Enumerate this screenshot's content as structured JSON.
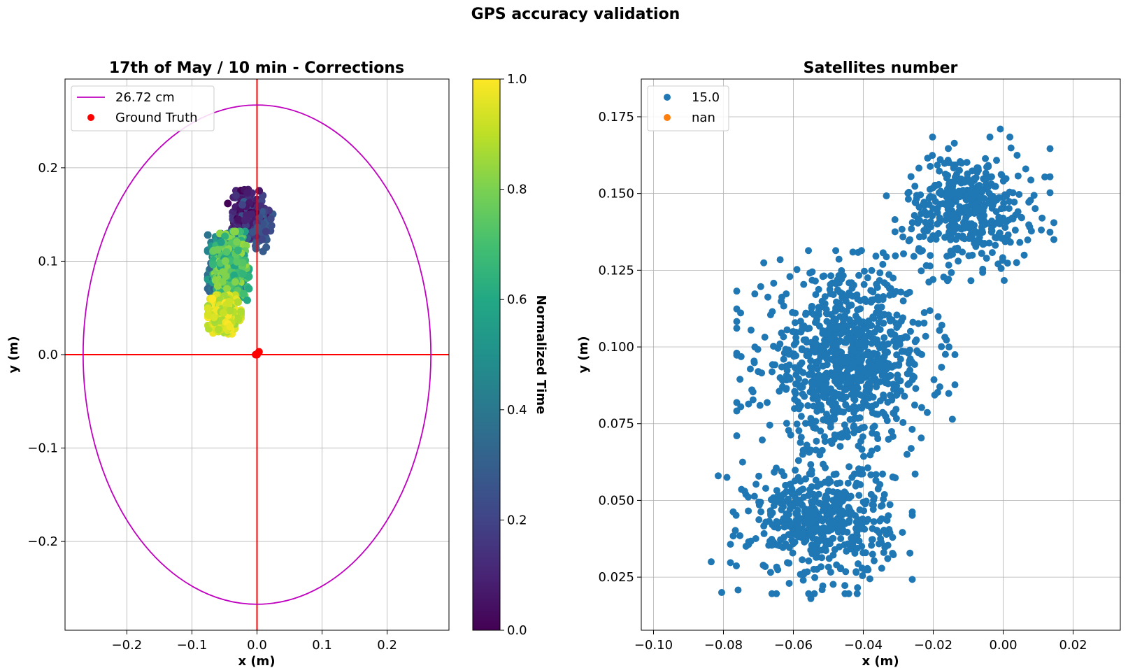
{
  "figure": {
    "suptitle": "GPS accuracy validation"
  },
  "chart_data": [
    {
      "type": "scatter",
      "title": "17th of May / 10 min - Corrections",
      "xlabel": "x (m)",
      "ylabel": "y (m)",
      "xlim": [
        -0.295,
        0.295
      ],
      "ylim": [
        -0.295,
        0.295
      ],
      "xticks": [
        "−0.2",
        "−0.1",
        "0.0",
        "0.1",
        "0.2"
      ],
      "xtick_values": [
        -0.2,
        -0.1,
        0.0,
        0.1,
        0.2
      ],
      "yticks": [
        "−0.2",
        "−0.1",
        "0.0",
        "0.1",
        "0.2"
      ],
      "ytick_values": [
        -0.2,
        -0.1,
        0.0,
        0.1,
        0.2
      ],
      "grid": true,
      "legend_position": "upper-left",
      "circle": {
        "name": "26.72 cm",
        "radius": 0.2672,
        "color": "#bf00bf"
      },
      "ground_truth": {
        "name": "Ground Truth",
        "color": "#ff0000",
        "points": [
          [
            0.0,
            0.0
          ],
          [
            0.003,
            0.003
          ],
          [
            -0.002,
            0.0
          ]
        ]
      },
      "crosshair_color": "#ff0000",
      "colormap": "viridis",
      "colorbar": {
        "label": "Normalized Time",
        "range": [
          0.0,
          1.0
        ],
        "ticks": [
          "0.0",
          "0.2",
          "0.4",
          "0.6",
          "0.8",
          "1.0"
        ],
        "tick_values": [
          0.0,
          0.2,
          0.4,
          0.6,
          0.8,
          1.0
        ]
      },
      "point_clusters": [
        {
          "time_range": [
            0.0,
            0.3
          ],
          "center": [
            -0.01,
            0.145
          ],
          "spread": [
            0.012,
            0.012
          ],
          "count": 380
        },
        {
          "time_range": [
            0.3,
            0.55
          ],
          "center": [
            -0.048,
            0.095
          ],
          "spread": [
            0.012,
            0.015
          ],
          "count": 380
        },
        {
          "time_range": [
            0.55,
            0.85
          ],
          "center": [
            -0.04,
            0.095
          ],
          "spread": [
            0.012,
            0.016
          ],
          "count": 420
        },
        {
          "time_range": [
            0.85,
            1.0
          ],
          "center": [
            -0.05,
            0.043
          ],
          "spread": [
            0.011,
            0.009
          ],
          "count": 360
        }
      ]
    },
    {
      "type": "scatter",
      "title": "Satellites number",
      "xlabel": "x (m)",
      "ylabel": "y (m)",
      "xlim": [
        -0.1035,
        0.0335
      ],
      "ylim": [
        0.0077,
        0.1873
      ],
      "xticks": [
        "−0.10",
        "−0.08",
        "−0.06",
        "−0.04",
        "−0.02",
        "0.00",
        "0.02"
      ],
      "xtick_values": [
        -0.1,
        -0.08,
        -0.06,
        -0.04,
        -0.02,
        0.0,
        0.02
      ],
      "yticks": [
        "0.025",
        "0.050",
        "0.075",
        "0.100",
        "0.125",
        "0.150",
        "0.175"
      ],
      "ytick_values": [
        0.025,
        0.05,
        0.075,
        0.1,
        0.125,
        0.15,
        0.175
      ],
      "grid": true,
      "legend_position": "upper-left",
      "series": [
        {
          "name": "15.0",
          "color": "#1f77b4"
        },
        {
          "name": "nan",
          "color": "#ff7f0e"
        }
      ],
      "point_clusters": [
        {
          "center": [
            -0.01,
            0.145
          ],
          "spread": [
            0.009,
            0.009
          ],
          "count": 420
        },
        {
          "center": [
            -0.045,
            0.095
          ],
          "spread": [
            0.012,
            0.014
          ],
          "count": 900
        },
        {
          "center": [
            -0.052,
            0.043
          ],
          "spread": [
            0.01,
            0.009
          ],
          "count": 500
        }
      ],
      "outliers": [
        [
          -0.0008,
          0.171
        ],
        [
          -0.0835,
          0.03
        ],
        [
          -0.0815,
          0.058
        ],
        [
          -0.079,
          0.0575
        ],
        [
          -0.0805,
          0.02
        ],
        [
          -0.055,
          0.018
        ],
        [
          0.0145,
          0.1405
        ],
        [
          0.0145,
          0.135
        ],
        [
          -0.0155,
          0.1
        ],
        [
          -0.0275,
          0.065
        ]
      ]
    }
  ]
}
